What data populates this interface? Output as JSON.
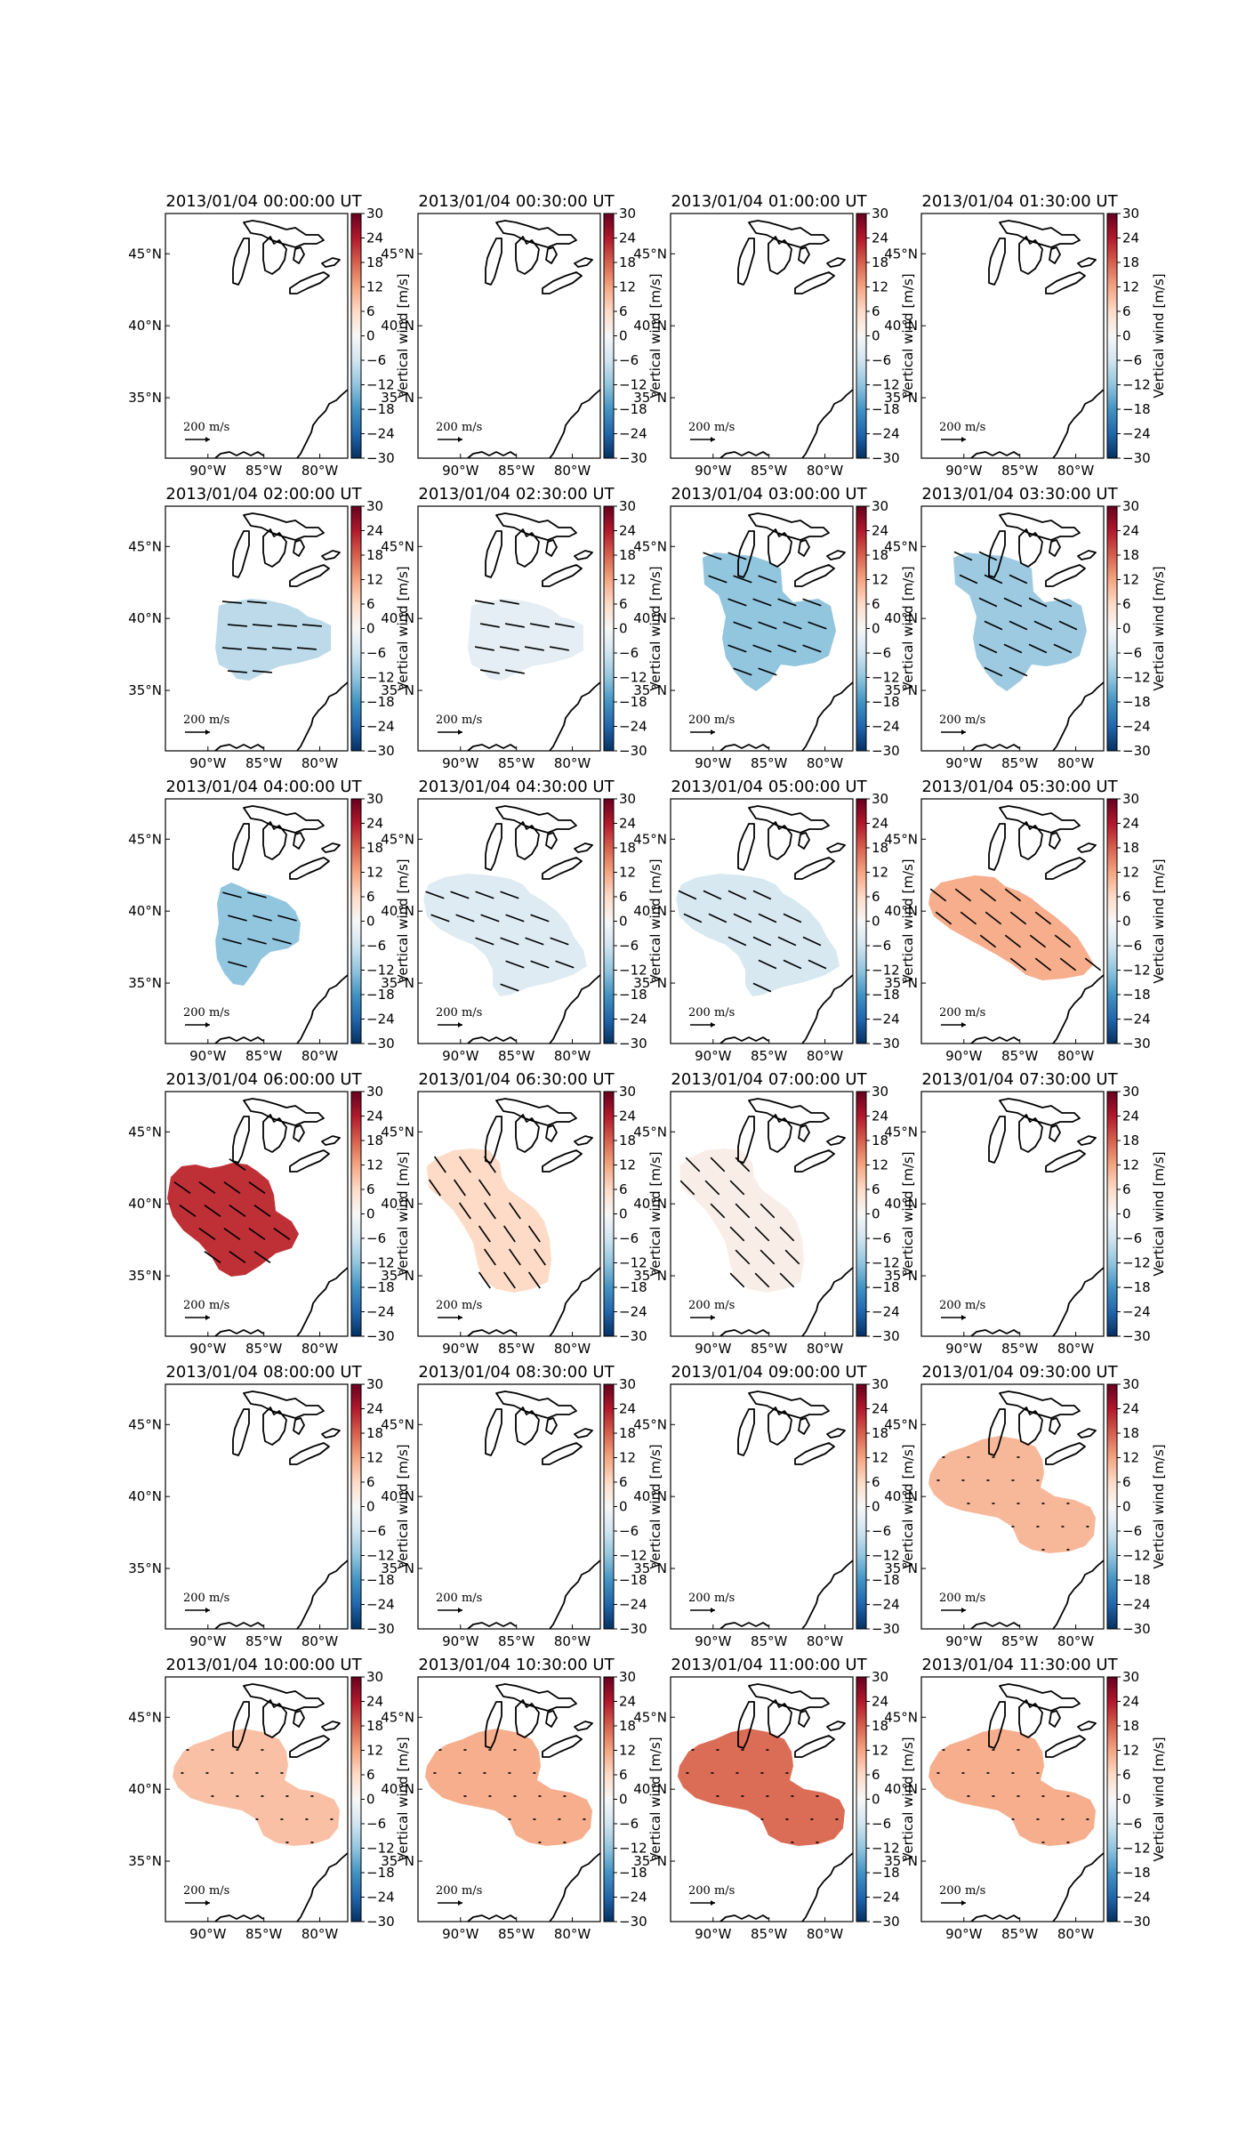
{
  "figure": {
    "colorbar": {
      "label": "Vertical wind [m/s]",
      "ticks": [
        "30",
        "24",
        "18",
        "12",
        "6",
        "0",
        "−6",
        "−12",
        "−18",
        "−24",
        "−30"
      ],
      "vmin": -30,
      "vmax": 30,
      "colormap": [
        "#053061",
        "#2166ac",
        "#4393c3",
        "#92c5de",
        "#d1e5f0",
        "#f7f7f7",
        "#fddbc7",
        "#f4a582",
        "#d6604d",
        "#b2182b",
        "#67001f"
      ]
    },
    "lon_labels": [
      "90°W",
      "85°W",
      "80°W"
    ],
    "lat_labels": [
      "45°N",
      "40°N",
      "35°N"
    ],
    "vector_key": {
      "value": "200",
      "unit_num": "m",
      "unit_den": "s"
    },
    "panels": [
      {
        "title": "2013/01/04 00:00:00 UT",
        "wind": null,
        "region": "none",
        "arrow_angle": 0
      },
      {
        "title": "2013/01/04 00:30:00 UT",
        "wind": null,
        "region": "none",
        "arrow_angle": 0
      },
      {
        "title": "2013/01/04 01:00:00 UT",
        "wind": null,
        "region": "none",
        "arrow_angle": 0
      },
      {
        "title": "2013/01/04 01:30:00 UT",
        "wind": null,
        "region": "none",
        "arrow_angle": 0
      },
      {
        "title": "2013/01/04 02:00:00 UT",
        "wind": -8,
        "region": "blobA",
        "arrow_angle": 5
      },
      {
        "title": "2013/01/04 02:30:00 UT",
        "wind": -3,
        "region": "blobA",
        "arrow_angle": 10
      },
      {
        "title": "2013/01/04 03:00:00 UT",
        "wind": -12,
        "region": "blobB",
        "arrow_angle": 20
      },
      {
        "title": "2013/01/04 03:30:00 UT",
        "wind": -11,
        "region": "blobB",
        "arrow_angle": 25
      },
      {
        "title": "2013/01/04 04:00:00 UT",
        "wind": -12,
        "region": "blobC",
        "arrow_angle": 15
      },
      {
        "title": "2013/01/04 04:30:00 UT",
        "wind": -4,
        "region": "blobD",
        "arrow_angle": 20
      },
      {
        "title": "2013/01/04 05:00:00 UT",
        "wind": -5,
        "region": "blobD",
        "arrow_angle": 25
      },
      {
        "title": "2013/01/04 05:30:00 UT",
        "wind": 11,
        "region": "blobE",
        "arrow_angle": 38
      },
      {
        "title": "2013/01/04 06:00:00 UT",
        "wind": 22,
        "region": "blobF",
        "arrow_angle": 35
      },
      {
        "title": "2013/01/04 06:30:00 UT",
        "wind": 6,
        "region": "blobG",
        "arrow_angle": 55
      },
      {
        "title": "2013/01/04 07:00:00 UT",
        "wind": 2,
        "region": "blobG",
        "arrow_angle": 45
      },
      {
        "title": "2013/01/04 07:30:00 UT",
        "wind": null,
        "region": "none",
        "arrow_angle": 0
      },
      {
        "title": "2013/01/04 08:00:00 UT",
        "wind": null,
        "region": "none",
        "arrow_angle": 0
      },
      {
        "title": "2013/01/04 08:30:00 UT",
        "wind": null,
        "region": "none",
        "arrow_angle": 0
      },
      {
        "title": "2013/01/04 09:00:00 UT",
        "wind": null,
        "region": "none",
        "arrow_angle": 0
      },
      {
        "title": "2013/01/04 09:30:00 UT",
        "wind": 10,
        "region": "blobH",
        "arrow_angle": 0
      },
      {
        "title": "2013/01/04 10:00:00 UT",
        "wind": 9,
        "region": "blobH",
        "arrow_angle": 0
      },
      {
        "title": "2013/01/04 10:30:00 UT",
        "wind": 11,
        "region": "blobH",
        "arrow_angle": 0
      },
      {
        "title": "2013/01/04 11:00:00 UT",
        "wind": 17,
        "region": "blobH",
        "arrow_angle": 0
      },
      {
        "title": "2013/01/04 11:30:00 UT",
        "wind": 11,
        "region": "blobH",
        "arrow_angle": 0
      }
    ]
  }
}
